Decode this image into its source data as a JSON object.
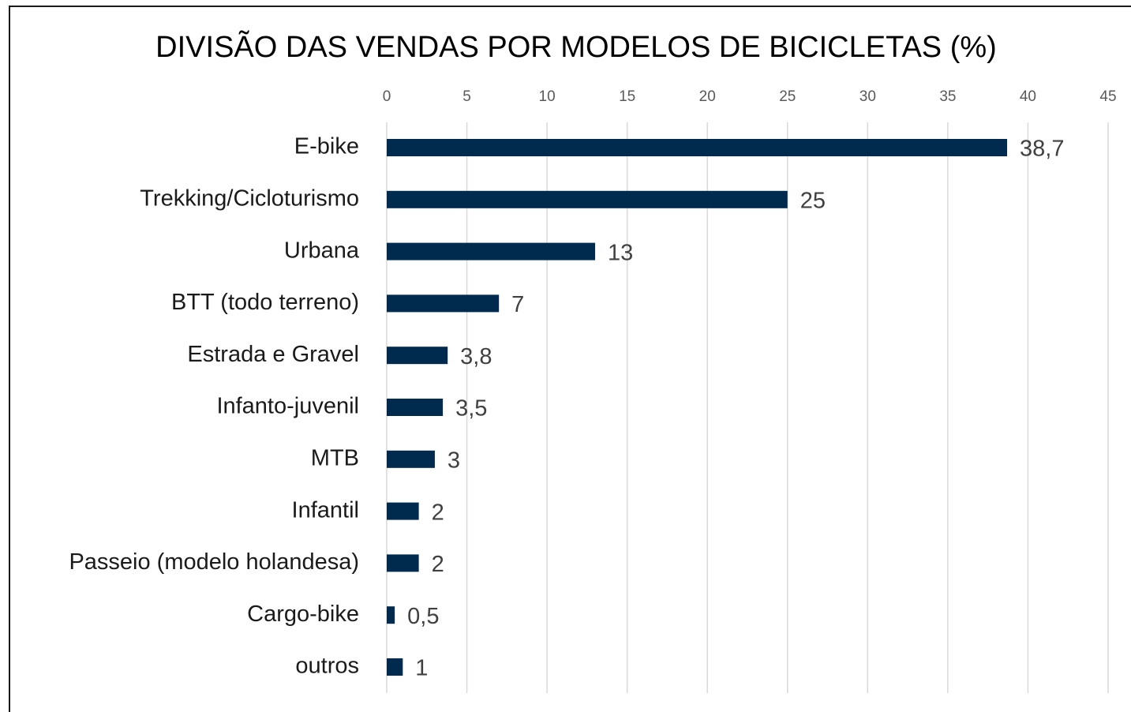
{
  "chart_data": {
    "type": "bar",
    "orientation": "horizontal",
    "title": "DIVISÃO DAS VENDAS POR MODELOS DE BICICLETAS (%)",
    "categories": [
      "E-bike",
      "Trekking/Cicloturismo",
      "Urbana",
      "BTT (todo terreno)",
      "Estrada e Gravel",
      "Infanto-juvenil",
      "MTB",
      "Infantil",
      "Passeio (modelo holandesa)",
      "Cargo-bike",
      "outros"
    ],
    "values": [
      38.7,
      25,
      13,
      7,
      3.8,
      3.5,
      3,
      2,
      2,
      0.5,
      1
    ],
    "value_labels": [
      "38,7",
      "25",
      "13",
      "7",
      "3,8",
      "3,5",
      "3",
      "2",
      "2",
      "0,5",
      "1"
    ],
    "color": "#002a4e",
    "xlim": [
      0,
      45
    ],
    "xticks": [
      0,
      5,
      10,
      15,
      20,
      25,
      30,
      35,
      40,
      45
    ],
    "grid": true
  }
}
